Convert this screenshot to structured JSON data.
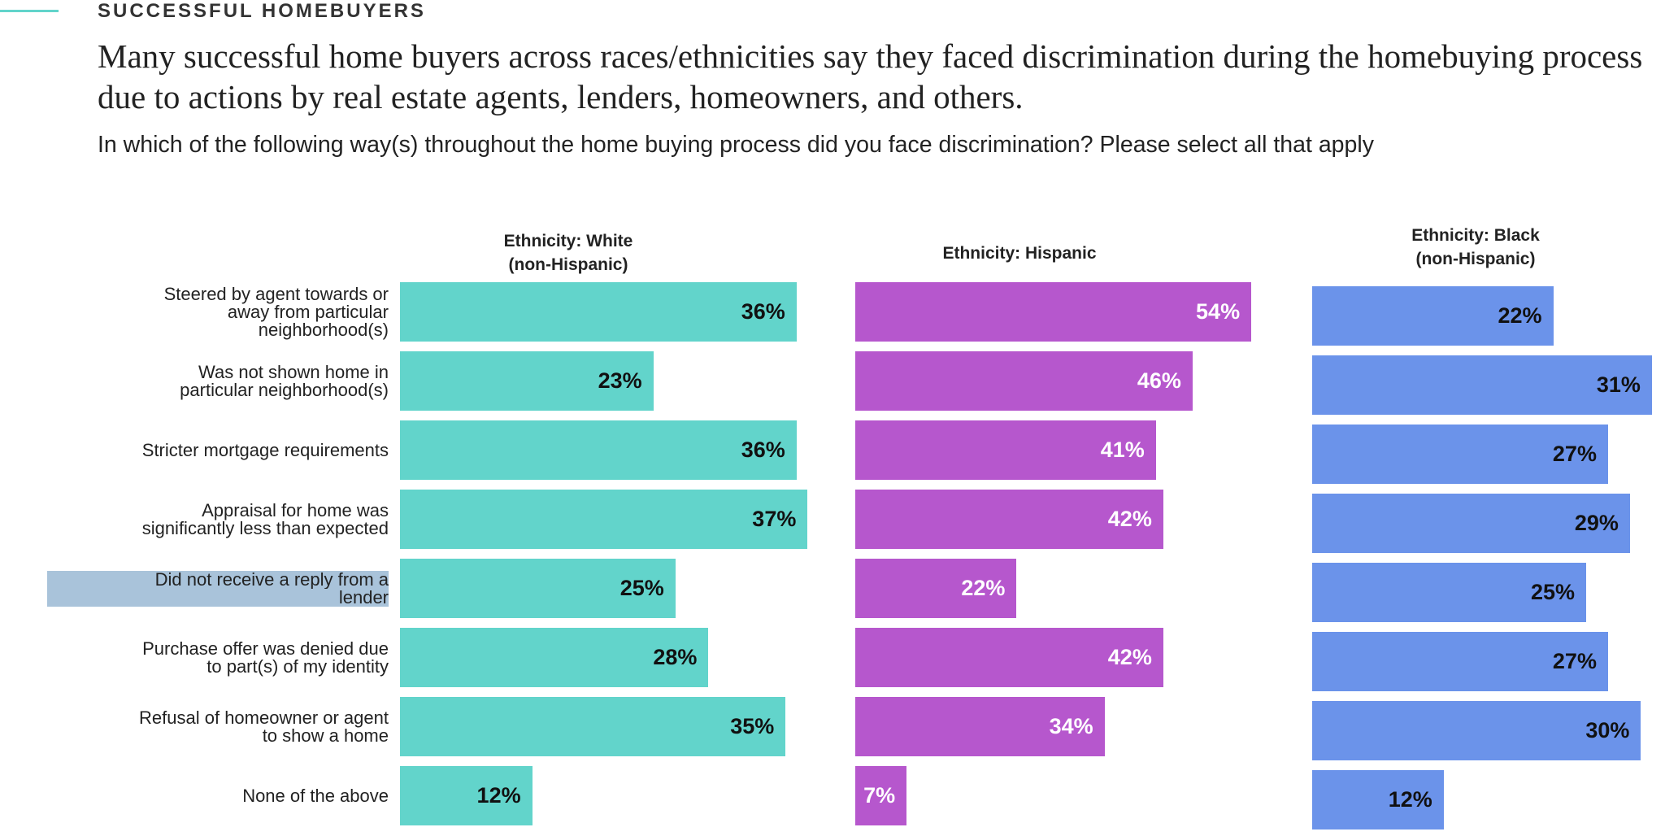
{
  "header": {
    "eyebrow": "SUCCESSFUL HOMEBUYERS",
    "title": "Many successful home buyers across races/ethnicities say they faced discrimination during the homebuying process due to actions by real estate agents, lenders, homeowners, and others.",
    "subtitle": "In which of the following way(s) throughout the home buying process did you face discrimination? Please select all that apply"
  },
  "colors": {
    "accent": "#62d4cb",
    "white": "#62d4cb",
    "hispanic": "#b657cd",
    "black": "#6b93ea"
  },
  "chart_data": {
    "type": "bar",
    "orientation": "horizontal",
    "categories": [
      "Steered by agent towards or away from particular neighborhood(s)",
      "Was not shown home in particular neighborhood(s)",
      "Stricter mortgage requirements",
      "Appraisal for home was significantly less than expected",
      "Did not receive a reply from a lender",
      "Purchase offer was denied due to part(s) of my identity",
      "Refusal of homeowner or agent to show a home",
      "None of the above"
    ],
    "category_lines": [
      [
        "Steered by agent towards or",
        "away from particular",
        "neighborhood(s)"
      ],
      [
        "Was not shown home in",
        "particular neighborhood(s)"
      ],
      [
        "Stricter mortgage requirements"
      ],
      [
        "Appraisal for home was",
        "significantly less than expected"
      ],
      [
        "Did not receive a reply from a",
        "lender"
      ],
      [
        "Purchase offer was denied due",
        "to part(s) of my identity"
      ],
      [
        "Refusal of homeowner or agent",
        "to show a home"
      ],
      [
        "None of the above"
      ]
    ],
    "highlighted_category": 4,
    "unit": "%",
    "series": [
      {
        "name": "Ethnicity: White (non-Hispanic)",
        "header_lines": [
          "Ethnicity: White",
          "(non-Hispanic)"
        ],
        "color": "#62d4cb",
        "label_color": "#111111",
        "values": [
          36,
          23,
          36,
          37,
          25,
          28,
          35,
          12
        ]
      },
      {
        "name": "Ethnicity: Hispanic",
        "header_lines": [
          "Ethnicity: Hispanic"
        ],
        "color": "#b657cd",
        "label_color": "#ffffff",
        "values": [
          54,
          46,
          41,
          42,
          22,
          42,
          34,
          7
        ]
      },
      {
        "name": "Ethnicity: Black (non-Hispanic)",
        "header_lines": [
          "Ethnicity: Black",
          "(non-Hispanic)"
        ],
        "color": "#6b93ea",
        "label_color": "#111111",
        "values": [
          22,
          31,
          27,
          29,
          25,
          27,
          30,
          12
        ]
      }
    ],
    "axis_visible": false,
    "grid": false,
    "legend": "none"
  }
}
